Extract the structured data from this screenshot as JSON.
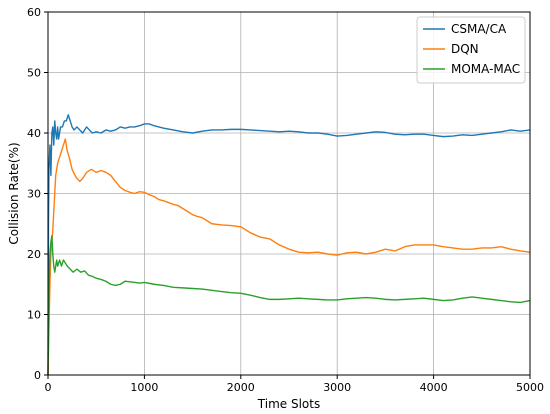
{
  "chart_data": {
    "type": "line",
    "title": "",
    "xlabel": "Time Slots",
    "ylabel": "Collision Rate(%)",
    "xlim": [
      0,
      5000
    ],
    "ylim": [
      0,
      60
    ],
    "xticks": [
      0,
      1000,
      2000,
      3000,
      4000,
      5000
    ],
    "yticks": [
      0,
      10,
      20,
      30,
      40,
      50,
      60
    ],
    "grid": true,
    "legend_position": "top-right",
    "series": [
      {
        "name": "CSMA/CA",
        "color": "#1f77b4",
        "x": [
          0,
          5,
          10,
          20,
          30,
          40,
          50,
          60,
          70,
          80,
          90,
          100,
          110,
          120,
          130,
          150,
          170,
          190,
          210,
          230,
          250,
          270,
          300,
          330,
          360,
          400,
          430,
          460,
          500,
          550,
          600,
          650,
          700,
          750,
          800,
          850,
          900,
          950,
          1000,
          1050,
          1100,
          1150,
          1200,
          1300,
          1400,
          1500,
          1600,
          1700,
          1800,
          1900,
          2000,
          2100,
          2200,
          2300,
          2400,
          2500,
          2600,
          2700,
          2800,
          2900,
          3000,
          3100,
          3200,
          3300,
          3400,
          3500,
          3600,
          3700,
          3800,
          3900,
          4000,
          4100,
          4200,
          4300,
          4400,
          4500,
          4600,
          4700,
          4800,
          4900,
          5000
        ],
        "y": [
          0,
          25,
          34,
          38,
          33,
          40,
          41,
          38,
          42,
          40,
          39,
          41,
          39,
          40,
          41,
          41,
          42,
          42,
          43,
          42,
          41,
          40.5,
          41,
          40.5,
          40,
          41,
          40.5,
          40,
          40.2,
          40,
          40.5,
          40.3,
          40.5,
          41,
          40.8,
          41,
          41,
          41.2,
          41.5,
          41.5,
          41.2,
          41,
          40.8,
          40.5,
          40.2,
          40,
          40.3,
          40.5,
          40.5,
          40.6,
          40.6,
          40.5,
          40.4,
          40.3,
          40.2,
          40.3,
          40.2,
          40,
          40,
          39.8,
          39.5,
          39.6,
          39.8,
          40,
          40.2,
          40.1,
          39.8,
          39.7,
          39.8,
          39.8,
          39.6,
          39.4,
          39.5,
          39.7,
          39.6,
          39.8,
          40,
          40.2,
          40.5,
          40.3,
          40.5
        ]
      },
      {
        "name": "DQN",
        "color": "#ff7f0e",
        "x": [
          0,
          10,
          20,
          30,
          40,
          50,
          60,
          70,
          80,
          90,
          100,
          120,
          140,
          160,
          180,
          200,
          220,
          250,
          280,
          300,
          330,
          360,
          400,
          450,
          500,
          550,
          600,
          650,
          700,
          750,
          800,
          850,
          900,
          950,
          1000,
          1050,
          1100,
          1150,
          1200,
          1250,
          1300,
          1350,
          1400,
          1450,
          1500,
          1550,
          1600,
          1650,
          1700,
          1800,
          1900,
          2000,
          2100,
          2200,
          2300,
          2400,
          2500,
          2600,
          2700,
          2800,
          2900,
          3000,
          3100,
          3200,
          3300,
          3400,
          3500,
          3600,
          3700,
          3800,
          3900,
          4000,
          4100,
          4200,
          4300,
          4400,
          4500,
          4600,
          4700,
          4800,
          4900,
          5000
        ],
        "y": [
          0,
          8,
          15,
          20,
          22,
          24,
          27,
          30,
          33,
          34,
          35,
          36,
          37,
          38,
          39,
          37,
          36,
          34,
          33,
          32.5,
          32,
          32.5,
          33.5,
          34,
          33.5,
          33.8,
          33.5,
          33,
          32,
          31,
          30.5,
          30.2,
          30,
          30.3,
          30.2,
          29.8,
          29.5,
          29,
          28.8,
          28.5,
          28.2,
          28,
          27.5,
          27,
          26.5,
          26.2,
          26,
          25.5,
          25,
          24.8,
          24.7,
          24.5,
          23.5,
          22.8,
          22.5,
          21.5,
          20.8,
          20.3,
          20.2,
          20.3,
          20,
          19.8,
          20.2,
          20.3,
          20,
          20.3,
          20.8,
          20.5,
          21.2,
          21.5,
          21.5,
          21.5,
          21.2,
          21,
          20.8,
          20.8,
          21,
          21,
          21.2,
          20.8,
          20.5,
          20.3
        ]
      },
      {
        "name": "MOMA-MAC",
        "color": "#2ca02c",
        "x": [
          0,
          5,
          10,
          15,
          20,
          30,
          40,
          50,
          60,
          70,
          80,
          90,
          100,
          120,
          140,
          160,
          180,
          200,
          230,
          260,
          300,
          340,
          380,
          420,
          460,
          500,
          550,
          600,
          650,
          700,
          750,
          800,
          850,
          900,
          950,
          1000,
          1100,
          1200,
          1300,
          1400,
          1500,
          1600,
          1700,
          1800,
          1900,
          2000,
          2100,
          2200,
          2300,
          2400,
          2500,
          2600,
          2700,
          2800,
          2900,
          3000,
          3100,
          3200,
          3300,
          3400,
          3500,
          3600,
          3700,
          3800,
          3900,
          4000,
          4100,
          4200,
          4300,
          4400,
          4500,
          4600,
          4700,
          4800,
          4900,
          5000
        ],
        "y": [
          0,
          6,
          12,
          17,
          20,
          22,
          23,
          20,
          18,
          17,
          18,
          19,
          18,
          19,
          18,
          19,
          18.5,
          18,
          17.5,
          17,
          17.5,
          17,
          17.2,
          16.5,
          16.3,
          16,
          15.8,
          15.5,
          15,
          14.8,
          15,
          15.5,
          15.4,
          15.3,
          15.2,
          15.3,
          15,
          14.8,
          14.5,
          14.4,
          14.3,
          14.2,
          14,
          13.8,
          13.6,
          13.5,
          13.2,
          12.8,
          12.5,
          12.5,
          12.6,
          12.7,
          12.6,
          12.5,
          12.4,
          12.4,
          12.6,
          12.7,
          12.8,
          12.7,
          12.5,
          12.4,
          12.5,
          12.6,
          12.7,
          12.5,
          12.3,
          12.4,
          12.7,
          12.9,
          12.7,
          12.5,
          12.3,
          12.1,
          12.0,
          12.3
        ]
      }
    ]
  }
}
